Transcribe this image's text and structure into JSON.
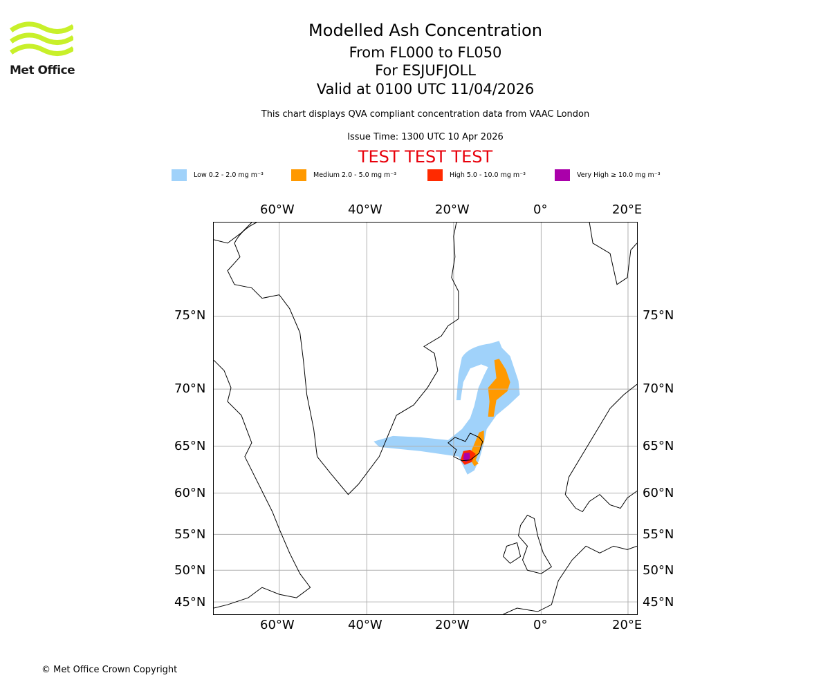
{
  "logo": {
    "text": "Met Office",
    "color": "#c8f02a"
  },
  "title": {
    "main": "Modelled Ash Concentration",
    "levels": "From FL000 to FL050",
    "volcano": "For ESJUFJOLL",
    "valid": "Valid at 0100 UTC 11/04/2026"
  },
  "subtitle": "This chart displays QVA compliant concentration data from VAAC London",
  "issue_time": "Issue Time: 1300 UTC 10 Apr 2026",
  "test_banner": "TEST TEST TEST",
  "legend": [
    {
      "label": "Low 0.2 - 2.0 mg m⁻³",
      "color": "#a0d2fa"
    },
    {
      "label": "Medium 2.0 - 5.0 mg m⁻³",
      "color": "#ff9900"
    },
    {
      "label": "High 5.0 - 10.0 mg m⁻³",
      "color": "#ff2a00"
    },
    {
      "label": "Very High ≥ 10.0 mg m⁻³",
      "color": "#aa00aa"
    }
  ],
  "axes": {
    "lon_labels": [
      "60°W",
      "40°W",
      "20°W",
      "0°",
      "20°E"
    ],
    "lat_labels": [
      "75°N",
      "70°N",
      "65°N",
      "60°N",
      "55°N",
      "50°N",
      "45°N"
    ]
  },
  "copyright": "© Met Office Crown Copyright"
}
